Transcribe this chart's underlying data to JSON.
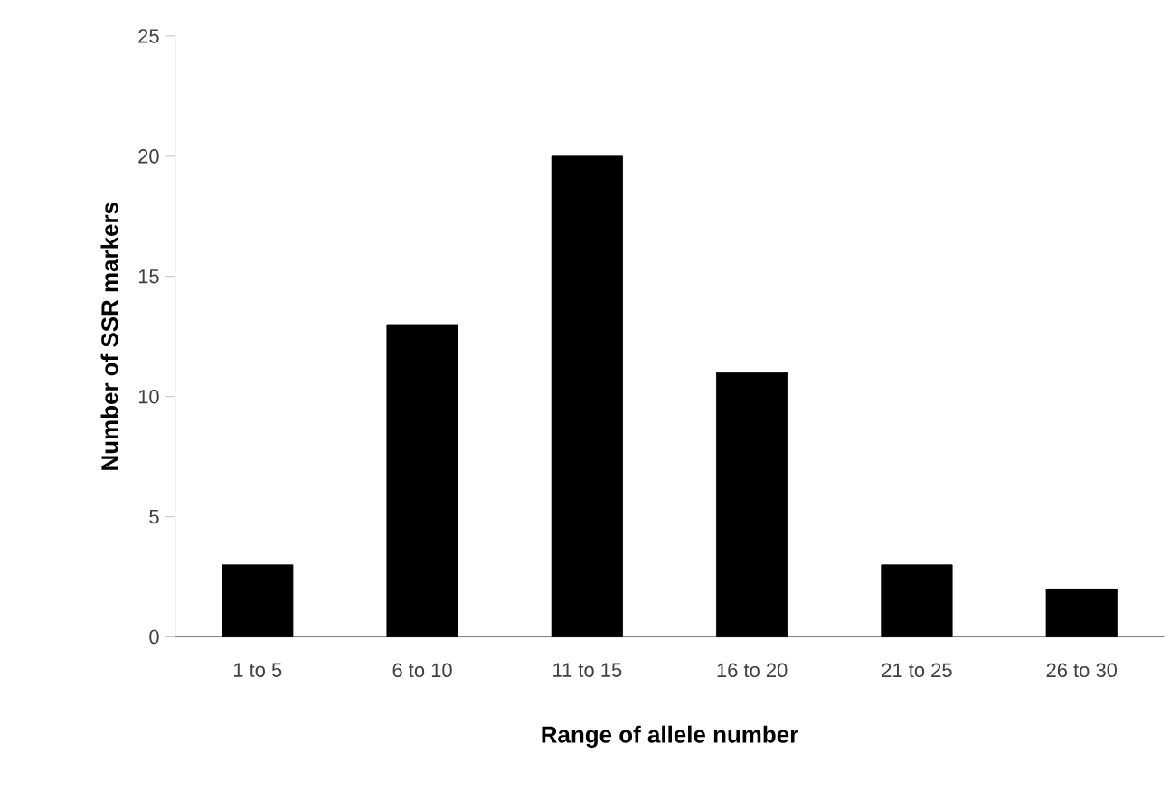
{
  "chart_data": {
    "type": "bar",
    "xlabel": "Range of allele number",
    "ylabel": "Number of SSR markers",
    "categories": [
      "1 to 5",
      "6 to 10",
      "11 to 15",
      "16 to 20",
      "21 to 25",
      "26 to 30"
    ],
    "values": [
      3,
      13,
      20,
      11,
      3,
      2
    ],
    "color": "#000000",
    "ylim": [
      0,
      25
    ],
    "yticks": [
      0,
      5,
      10,
      15,
      20,
      25
    ]
  }
}
